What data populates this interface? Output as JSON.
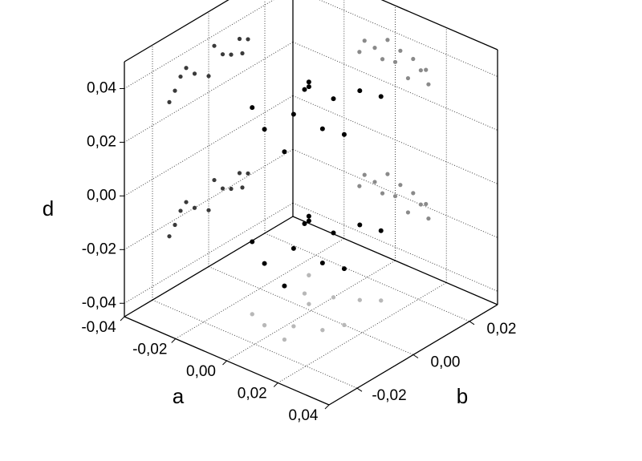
{
  "chart_data": {
    "type": "scatter3d",
    "x_label": "a",
    "y_label": "b",
    "z_label": "d",
    "xlim": [
      -0.04,
      0.04
    ],
    "xticks": [
      {
        "value": -0.04,
        "label": "-0,04"
      },
      {
        "value": -0.02,
        "label": "-0,02"
      },
      {
        "value": 0,
        "label": "0,00"
      },
      {
        "value": 0.02,
        "label": "0,02"
      },
      {
        "value": 0.04,
        "label": "0,04"
      }
    ],
    "ylim": [
      -0.03,
      0.03
    ],
    "yticks": [
      {
        "value": -0.02,
        "label": "-0,02"
      },
      {
        "value": 0,
        "label": "0,00"
      },
      {
        "value": 0.02,
        "label": "0,02"
      }
    ],
    "zlim": [
      -0.045,
      0.05
    ],
    "zticks": [
      {
        "value": -0.04,
        "label": "-0,04"
      },
      {
        "value": -0.02,
        "label": "-0,02"
      },
      {
        "value": 0,
        "label": "0,00"
      },
      {
        "value": 0.02,
        "label": "0,02"
      },
      {
        "value": 0.04,
        "label": "0,04"
      }
    ],
    "grid": true,
    "color": "#000000",
    "projection_colors": {
      "left_wall": "#3a3a3a",
      "right_wall": "#8a8a8a",
      "floor": "#b8b8b8"
    },
    "x": [
      -0.012,
      -0.005,
      0.002,
      0.01,
      0.013,
      -0.008,
      0.0,
      0.007,
      -0.014,
      0.012,
      -0.003,
      0.005,
      -0.012,
      -0.005,
      0.002,
      0.01,
      0.013,
      -0.008,
      0.0,
      0.007,
      -0.014,
      0.012,
      -0.003,
      0.005
    ],
    "y": [
      -0.01,
      -0.012,
      -0.008,
      -0.005,
      0.0,
      0.005,
      0.008,
      0.011,
      0.012,
      0.014,
      0.002,
      -0.014,
      -0.01,
      -0.012,
      -0.008,
      -0.005,
      0.0,
      0.005,
      0.008,
      0.011,
      0.012,
      0.014,
      0.002,
      -0.014
    ],
    "z": [
      0.032,
      0.028,
      0.034,
      0.03,
      0.026,
      0.031,
      0.029,
      0.033,
      0.027,
      0.031,
      0.036,
      0.025,
      -0.018,
      -0.022,
      -0.016,
      -0.02,
      -0.024,
      -0.019,
      -0.021,
      -0.017,
      -0.023,
      -0.019,
      -0.014,
      -0.025
    ]
  }
}
